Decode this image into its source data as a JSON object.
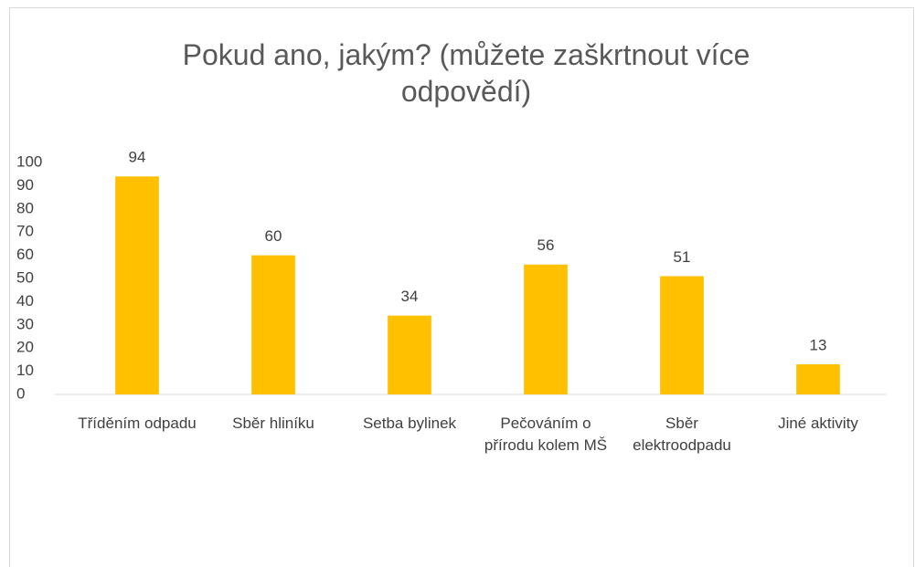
{
  "chart_data": {
    "type": "bar",
    "title": "Pokud ano, jakým? (můžete zaškrtnout více odpovědí)",
    "categories": [
      "Tříděním odpadu",
      "Sběr hliníku",
      "Setba bylinek",
      "Pečováním o přírodu kolem MŠ",
      "Sběr elektroodpadu",
      "Jiné aktivity"
    ],
    "values": [
      94,
      60,
      34,
      56,
      51,
      13
    ],
    "color": "#ffc000",
    "ylim": [
      0,
      100
    ],
    "yticks": [
      0,
      10,
      20,
      30,
      40,
      50,
      60,
      70,
      80,
      90,
      100
    ],
    "grid": false
  }
}
